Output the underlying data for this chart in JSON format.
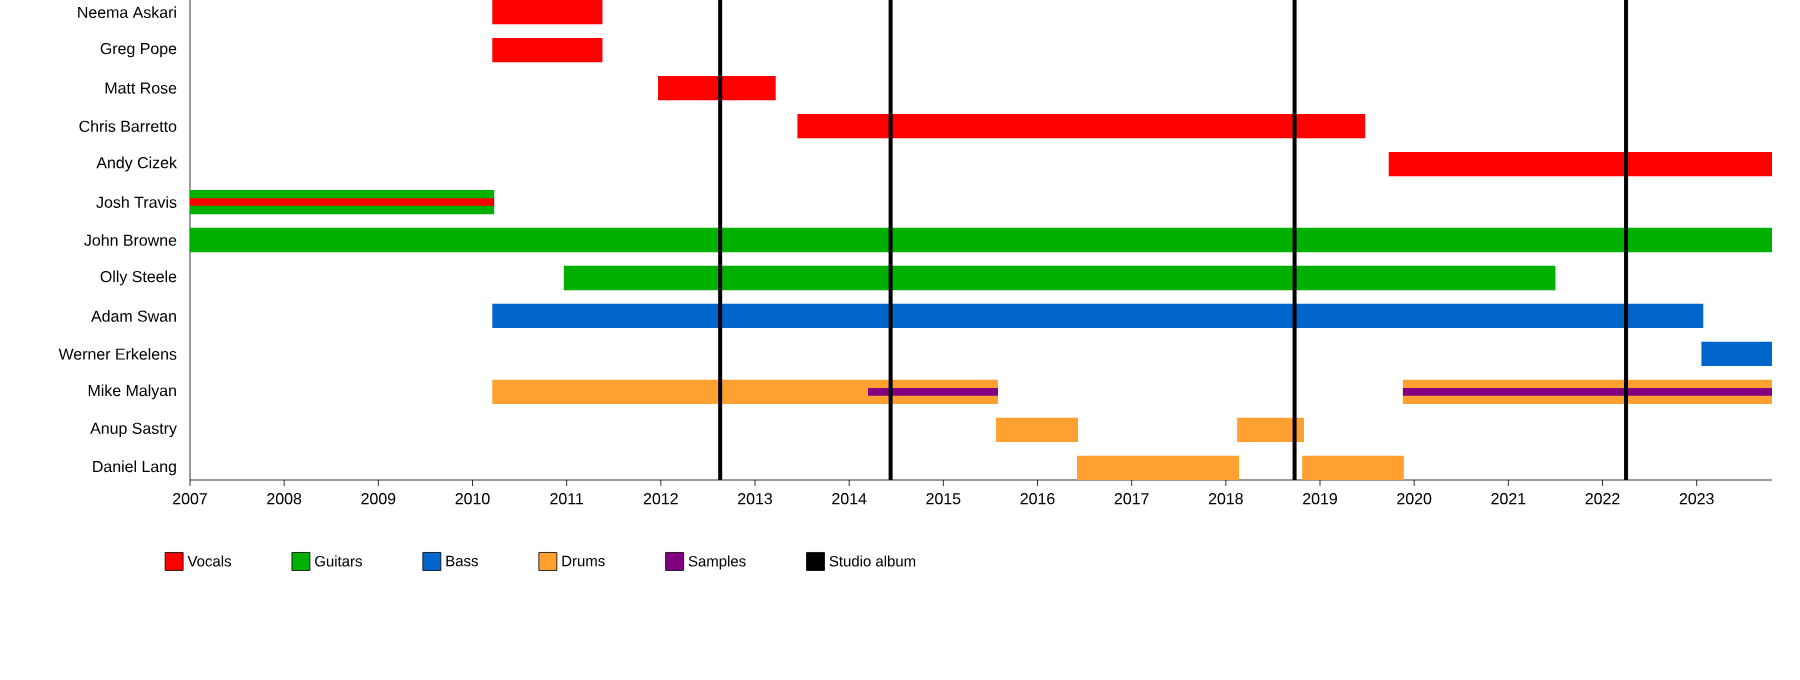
{
  "chart_data": {
    "type": "bar",
    "orientation": "horizontal",
    "categories": [
      "Neema Askari",
      "Greg Pope",
      "Matt Rose",
      "Chris Barretto",
      "Andy Cizek",
      "Josh Travis",
      "John Browne",
      "Olly Steele",
      "Adam Swan",
      "Werner Erkelens",
      "Mike Malyan",
      "Anup Sastry",
      "Daniel Lang"
    ],
    "series": [
      {
        "name": "Vocals",
        "color": "#ff0000",
        "base": [
          2010.21,
          2010.21,
          2011.97,
          2013.45,
          2019.73,
          null,
          null,
          null,
          null,
          null,
          null,
          null,
          null
        ],
        "values": [
          1.17,
          1.17,
          1.25,
          6.03,
          4.07,
          null,
          null,
          null,
          null,
          null,
          null,
          null,
          null
        ]
      },
      {
        "name": "Guitars",
        "color": "#00b000",
        "base": [
          null,
          null,
          null,
          null,
          null,
          2007,
          2007,
          2010.97,
          null,
          null,
          null,
          null,
          null
        ],
        "values": [
          null,
          null,
          null,
          null,
          null,
          3.23,
          16.8,
          10.53,
          null,
          null,
          null,
          null,
          null
        ]
      },
      {
        "name": "Bass",
        "color": "#0066cc",
        "base": [
          null,
          null,
          null,
          null,
          null,
          null,
          null,
          null,
          2010.21,
          2023.05,
          null,
          null,
          null
        ],
        "values": [
          null,
          null,
          null,
          null,
          null,
          null,
          null,
          null,
          12.86,
          0.75,
          null,
          null,
          null
        ]
      },
      {
        "name": "Drums",
        "color": "#ffa030",
        "base": [
          null,
          null,
          null,
          null,
          null,
          null,
          null,
          null,
          null,
          null,
          2010.21,
          2015.56,
          2016.42
        ],
        "values": [
          null,
          null,
          null,
          null,
          null,
          null,
          null,
          null,
          null,
          null,
          5.37,
          0.87,
          1.72
        ]
      },
      {
        "name": "Samples",
        "color": "#800080",
        "base": [
          null,
          null,
          null,
          null,
          null,
          null,
          null,
          null,
          null,
          null,
          2014.2,
          null,
          null
        ],
        "values": [
          null,
          null,
          null,
          null,
          null,
          null,
          null,
          null,
          null,
          null,
          1.38,
          null,
          null
        ]
      },
      {
        "color": "#ff0000",
        "base": [
          null,
          null,
          null,
          null,
          null,
          2007,
          null,
          null,
          null,
          null,
          null,
          null,
          null
        ],
        "values": [
          null,
          null,
          null,
          null,
          null,
          3.23,
          null,
          null,
          null,
          null,
          null,
          null,
          null
        ]
      },
      {
        "color": "#ffa030",
        "base": [
          null,
          null,
          null,
          null,
          null,
          null,
          null,
          null,
          null,
          null,
          2019.88,
          2018.12,
          2018.81
        ],
        "values": [
          null,
          null,
          null,
          null,
          null,
          null,
          null,
          null,
          null,
          null,
          3.92,
          0.71,
          1.08
        ]
      },
      {
        "color": "#800080",
        "base": [
          null,
          null,
          null,
          null,
          null,
          null,
          null,
          null,
          null,
          null,
          2019.88,
          null,
          null
        ],
        "values": [
          null,
          null,
          null,
          null,
          null,
          null,
          null,
          null,
          null,
          null,
          3.92,
          null,
          null
        ]
      }
    ],
    "xlim": [
      2007,
      2023.8
    ],
    "xticks": [
      2007,
      2008,
      2009,
      2010,
      2011,
      2012,
      2013,
      2014,
      2015,
      2016,
      2017,
      2018,
      2019,
      2020,
      2021,
      2022,
      2023
    ],
    "ref_lines": [
      {
        "axis": "x",
        "value": 2012.63,
        "label": "Studio album",
        "color": "#000000"
      },
      {
        "axis": "x",
        "value": 2014.44,
        "color": "#000000"
      },
      {
        "axis": "x",
        "value": 2018.73,
        "color": "#000000"
      },
      {
        "axis": "x",
        "value": 2022.25,
        "color": "#000000"
      }
    ],
    "legend": "bottom"
  }
}
